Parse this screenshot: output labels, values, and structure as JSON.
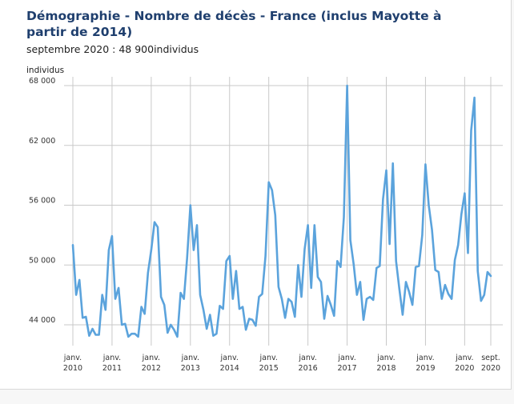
{
  "header": {
    "title": "Démographie - Nombre de décès - France (inclus Mayotte à partir de 2014)",
    "subtitle": "septembre 2020 : 48 900individus",
    "unit": "individus"
  },
  "colors": {
    "line": "#5ba3dc",
    "grid": "#c9c9c9",
    "title": "#1f3f6e"
  },
  "chart_data": {
    "type": "line",
    "title": "Démographie - Nombre de décès - France (inclus Mayotte à partir de 2014)",
    "subtitle": "septembre 2020 : 48 900individus",
    "ylabel": "individus",
    "ylim": [
      42500,
      68500
    ],
    "yticks": [
      44000,
      50000,
      56000,
      62000,
      68000
    ],
    "ytick_labels": [
      "44 000",
      "50 000",
      "56 000",
      "62 000",
      "68 000"
    ],
    "x_start": "2010-01",
    "x_end": "2020-09",
    "xtick_labels": [
      {
        "month": "2010-01",
        "line1": "janv.",
        "line2": "2010"
      },
      {
        "month": "2011-01",
        "line1": "janv.",
        "line2": "2011"
      },
      {
        "month": "2012-01",
        "line1": "janv.",
        "line2": "2012"
      },
      {
        "month": "2013-01",
        "line1": "janv.",
        "line2": "2013"
      },
      {
        "month": "2014-01",
        "line1": "janv.",
        "line2": "2014"
      },
      {
        "month": "2015-01",
        "line1": "janv.",
        "line2": "2015"
      },
      {
        "month": "2016-01",
        "line1": "janv.",
        "line2": "2016"
      },
      {
        "month": "2017-01",
        "line1": "janv.",
        "line2": "2017"
      },
      {
        "month": "2018-01",
        "line1": "janv.",
        "line2": "2018"
      },
      {
        "month": "2019-01",
        "line1": "janv.",
        "line2": "2019"
      },
      {
        "month": "2020-01",
        "line1": "janv.",
        "line2": "2020"
      },
      {
        "month": "2020-09",
        "line1": "sept.",
        "line2": "2020"
      }
    ],
    "grid": true,
    "series": [
      {
        "values": [
          52000,
          47000,
          48500,
          44700,
          44800,
          42900,
          43600,
          43000,
          43000,
          47000,
          45500,
          51500,
          52900,
          46600,
          47700,
          44000,
          44100,
          42800,
          43100,
          43100,
          42800,
          45800,
          45100,
          49200,
          51500,
          54300,
          53800,
          46800,
          46000,
          43200,
          44000,
          43500,
          42800,
          47200,
          46600,
          50700,
          56000,
          51500,
          54000,
          47000,
          45500,
          43600,
          45000,
          42900,
          43100,
          45900,
          45600,
          50400,
          50900,
          46600,
          49400,
          45600,
          45800,
          43500,
          44600,
          44500,
          43900,
          46800,
          47100,
          50900,
          58300,
          57500,
          55000,
          47800,
          46600,
          44700,
          46600,
          46300,
          44800,
          50000,
          46800,
          51600,
          54000,
          47700,
          54000,
          48800,
          48300,
          44600,
          46900,
          46000,
          44900,
          50400,
          49800,
          54800,
          68000,
          52500,
          50100,
          47000,
          48300,
          44500,
          46600,
          46800,
          46500,
          49700,
          49900,
          56600,
          59500,
          52100,
          60200,
          50400,
          47600,
          45000,
          48300,
          47300,
          46000,
          49800,
          49900,
          53000,
          60100,
          56000,
          53500,
          49500,
          49300,
          46600,
          48000,
          47100,
          46600,
          50500,
          52000,
          55100,
          57200,
          51200,
          63500,
          66800,
          49400,
          46400,
          47000,
          49300,
          48900
        ]
      }
    ]
  }
}
